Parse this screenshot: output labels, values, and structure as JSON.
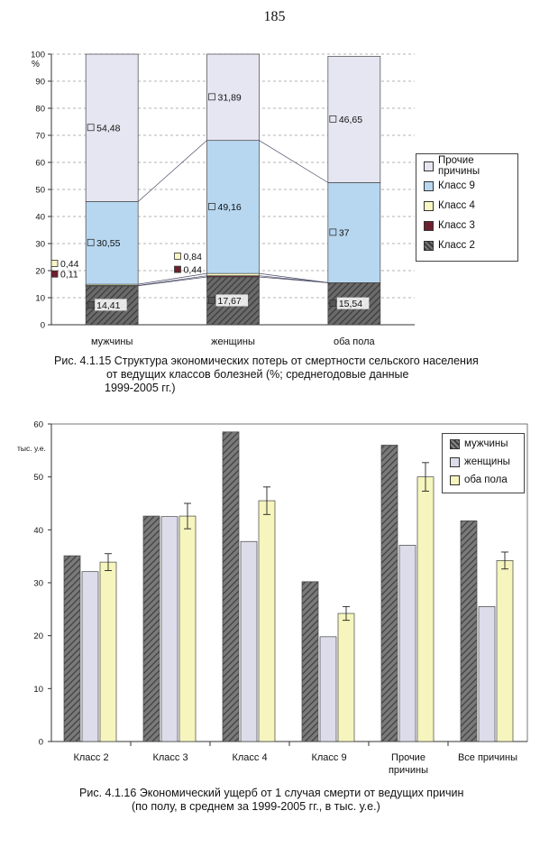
{
  "page_number": "185",
  "figure1": {
    "caption": [
      "Рис. 4.1.15 Структура экономических потерь от смертности сельского населения",
      "от ведущих классов болезней (%; среднегодовые данные",
      "1999-2005 гг.)"
    ],
    "y_unit": "%",
    "legend": [
      "Прочие причины",
      "Класс 9",
      "Класс 4",
      "Класс 3",
      "Класс 2"
    ],
    "colors": {
      "Прочие причины": "#e6e6f2",
      "Класс 9": "#b7d7f0",
      "Класс 4": "#f7f7c4",
      "Класс 3": "#6e1f2e",
      "Класс 2": "#555555"
    }
  },
  "figure2": {
    "caption": [
      "Рис. 4.1.16 Экономический ущерб от 1 случая смерти от ведущих причин",
      "(по полу, в среднем за 1999-2005 гг., в тыс. у.е.)"
    ],
    "y_unit": "тыс. у.е.",
    "legend": [
      "мужчины",
      "женщины",
      "оба пола"
    ],
    "colors": {
      "мужчины": "#666666",
      "женщины": "#dcdcea",
      "оба пола": "#f5f5bd"
    }
  },
  "chart_data": [
    {
      "type": "bar",
      "stacked": true,
      "categories": [
        "мужчины",
        "женщины",
        "оба пола"
      ],
      "ylim": [
        0,
        100
      ],
      "yticks": [
        0,
        10,
        20,
        30,
        40,
        50,
        60,
        70,
        80,
        90,
        100
      ],
      "ylabel": "%",
      "legend_position": "right",
      "series": [
        {
          "name": "Класс 2",
          "values": [
            14.41,
            17.67,
            15.54
          ],
          "labels": [
            "14,41",
            "17,67",
            "15,54"
          ]
        },
        {
          "name": "Класс 3",
          "values": [
            0.11,
            0.44,
            0.0
          ],
          "labels": [
            "0,11",
            "0,44",
            ""
          ]
        },
        {
          "name": "Класс 4",
          "values": [
            0.44,
            0.84,
            0.0
          ],
          "labels": [
            "0,44",
            "0,84",
            ""
          ]
        },
        {
          "name": "Класс 9",
          "values": [
            30.55,
            49.16,
            37.0
          ],
          "labels": [
            "30,55",
            "49,16",
            "37"
          ]
        },
        {
          "name": "Прочие причины",
          "values": [
            54.48,
            31.89,
            46.65
          ],
          "labels": [
            "54,48",
            "31,89",
            "46,65"
          ]
        }
      ]
    },
    {
      "type": "bar",
      "categories": [
        "Класс 2",
        "Класс 3",
        "Класс 4",
        "Класс 9",
        "Прочие причины",
        "Все причины"
      ],
      "category_lines": [
        [
          "Класс 2"
        ],
        [
          "Класс 3"
        ],
        [
          "Класс 4"
        ],
        [
          "Класс 9"
        ],
        [
          "Прочие",
          "причины"
        ],
        [
          "Все причины"
        ]
      ],
      "ylim": [
        0,
        60
      ],
      "yticks": [
        0,
        10,
        20,
        30,
        40,
        50,
        60
      ],
      "ylabel": "тыс. у.е.",
      "legend_position": "top-right",
      "series": [
        {
          "name": "мужчины",
          "values": [
            35.1,
            42.6,
            58.5,
            30.2,
            56.0,
            41.7
          ]
        },
        {
          "name": "женщины",
          "values": [
            32.1,
            42.5,
            37.8,
            19.8,
            37.1,
            25.5
          ]
        },
        {
          "name": "оба пола",
          "values": [
            33.9,
            42.6,
            45.5,
            24.2,
            50.0,
            34.2
          ],
          "error": [
            1.6,
            2.4,
            2.6,
            1.3,
            2.7,
            1.6
          ]
        }
      ]
    }
  ]
}
